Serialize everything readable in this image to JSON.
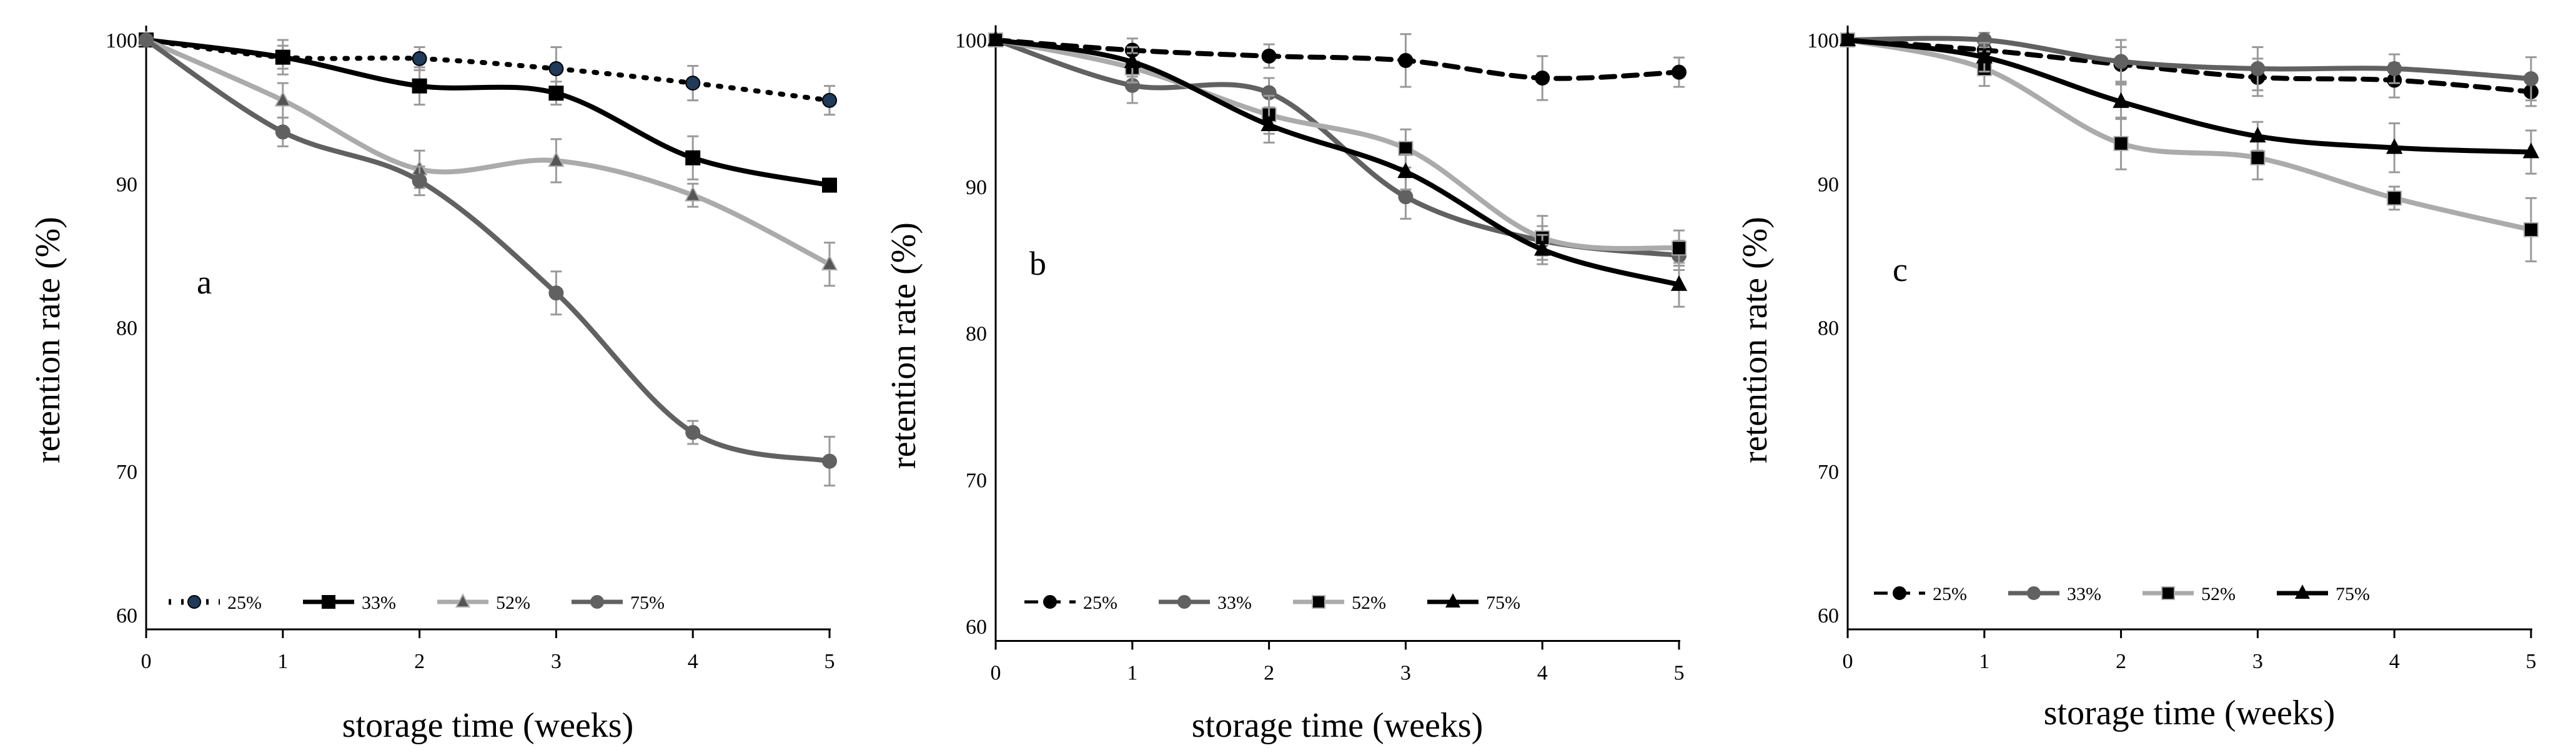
{
  "colors": {
    "black": "#000000",
    "dark_gray": "#616161",
    "light_gray": "#ababab",
    "error_bar": "#9a9a9a"
  },
  "chart_data": [
    {
      "type": "line",
      "panel_label": "a",
      "xlabel": "storage time (weeks)",
      "ylabel": "retention rate (%)",
      "xlim": [
        0,
        5
      ],
      "ylim": [
        59,
        101
      ],
      "x_ticks": [
        0,
        1,
        2,
        3,
        4,
        5
      ],
      "y_ticks": [
        60,
        70,
        80,
        90,
        100
      ],
      "x": [
        0,
        1,
        2,
        3,
        4,
        5
      ],
      "series": [
        {
          "name": "25%",
          "values": [
            100,
            98.8,
            98.7,
            98.0,
            97.0,
            95.8
          ],
          "errors": [
            0,
            1.2,
            0.8,
            1.5,
            1.2,
            1.0
          ],
          "color_key": "black",
          "dash": "dot",
          "marker": "circle",
          "marker_fill": "#1f3a5a"
        },
        {
          "name": "33%",
          "values": [
            100,
            98.8,
            96.8,
            96.3,
            91.8,
            89.9
          ],
          "errors": [
            0,
            0.8,
            1.3,
            0.8,
            1.5,
            0
          ],
          "color_key": "black",
          "dash": "solid",
          "marker": "square",
          "marker_fill": "#000000"
        },
        {
          "name": "52%",
          "values": [
            100,
            95.8,
            91.0,
            91.6,
            89.2,
            84.4
          ],
          "errors": [
            0,
            1.2,
            1.3,
            1.5,
            0.8,
            1.5
          ],
          "color_key": "light_gray",
          "dash": "solid",
          "marker": "triangle",
          "marker_fill": "#555555"
        },
        {
          "name": "75%",
          "values": [
            100,
            93.6,
            90.2,
            82.4,
            72.7,
            70.7
          ],
          "errors": [
            0,
            1.0,
            1.0,
            1.5,
            0.8,
            1.7
          ],
          "color_key": "dark_gray",
          "dash": "solid",
          "marker": "circle",
          "marker_fill": "#616161"
        }
      ]
    },
    {
      "type": "line",
      "panel_label": "b",
      "xlabel": "storage time (weeks)",
      "ylabel": "retention rate (%)",
      "xlim": [
        0,
        5
      ],
      "ylim": [
        59,
        101
      ],
      "x_ticks": [
        0,
        1,
        2,
        3,
        4,
        5
      ],
      "y_ticks": [
        60,
        70,
        80,
        90,
        100
      ],
      "x": [
        0,
        1,
        2,
        3,
        4,
        5
      ],
      "series": [
        {
          "name": "25%",
          "values": [
            100,
            99.3,
            98.9,
            98.6,
            97.4,
            97.8
          ],
          "errors": [
            0,
            0.8,
            0.8,
            1.8,
            1.5,
            1.0
          ],
          "color_key": "black",
          "dash": "dash",
          "marker": "circle",
          "marker_fill": "#000000"
        },
        {
          "name": "33%",
          "values": [
            100,
            96.9,
            96.4,
            89.3,
            86.3,
            85.3
          ],
          "errors": [
            0,
            1.2,
            1.0,
            1.5,
            1.0,
            1.0
          ],
          "color_key": "dark_gray",
          "dash": "solid",
          "marker": "circle",
          "marker_fill": "#616161"
        },
        {
          "name": "52%",
          "values": [
            100,
            98.1,
            94.9,
            92.6,
            86.5,
            85.8
          ],
          "errors": [
            0,
            1.0,
            1.3,
            1.3,
            1.5,
            1.2
          ],
          "color_key": "light_gray",
          "dash": "solid",
          "marker": "square",
          "marker_fill": "#000000"
        },
        {
          "name": "75%",
          "values": [
            100,
            98.5,
            94.2,
            91.0,
            85.7,
            83.3
          ],
          "errors": [
            0,
            1.0,
            1.2,
            1.2,
            1.0,
            1.5
          ],
          "color_key": "black",
          "dash": "solid",
          "marker": "triangle",
          "marker_fill": "#000000"
        }
      ]
    },
    {
      "type": "line",
      "panel_label": "c",
      "xlabel": "storage time (weeks)",
      "ylabel": "retention rate (%)",
      "xlim": [
        0,
        5
      ],
      "ylim": [
        59,
        101
      ],
      "x_ticks": [
        0,
        1,
        2,
        3,
        4,
        5
      ],
      "y_ticks": [
        60,
        70,
        80,
        90,
        100
      ],
      "x": [
        0,
        1,
        2,
        3,
        4,
        5
      ],
      "series": [
        {
          "name": "25%",
          "values": [
            100,
            99.3,
            98.3,
            97.4,
            97.2,
            96.4
          ],
          "errors": [
            0,
            0.8,
            1.2,
            1.3,
            1.2,
            1.0
          ],
          "color_key": "black",
          "dash": "dash",
          "marker": "circle",
          "marker_fill": "#000000"
        },
        {
          "name": "33%",
          "values": [
            100,
            100.0,
            98.5,
            98.0,
            98.0,
            97.3
          ],
          "errors": [
            0,
            0.5,
            1.5,
            1.5,
            1.0,
            1.5
          ],
          "color_key": "dark_gray",
          "dash": "solid",
          "marker": "circle",
          "marker_fill": "#616161"
        },
        {
          "name": "52%",
          "values": [
            100,
            98.0,
            92.8,
            91.8,
            89.0,
            86.8
          ],
          "errors": [
            0,
            1.2,
            1.8,
            1.5,
            0.8,
            2.2
          ],
          "color_key": "light_gray",
          "dash": "solid",
          "marker": "square",
          "marker_fill": "#000000"
        },
        {
          "name": "75%",
          "values": [
            100,
            98.8,
            95.7,
            93.3,
            92.5,
            92.2
          ],
          "errors": [
            0,
            1.0,
            1.2,
            1.0,
            1.7,
            1.5
          ],
          "color_key": "black",
          "dash": "solid",
          "marker": "triangle",
          "marker_fill": "#000000"
        }
      ]
    }
  ]
}
